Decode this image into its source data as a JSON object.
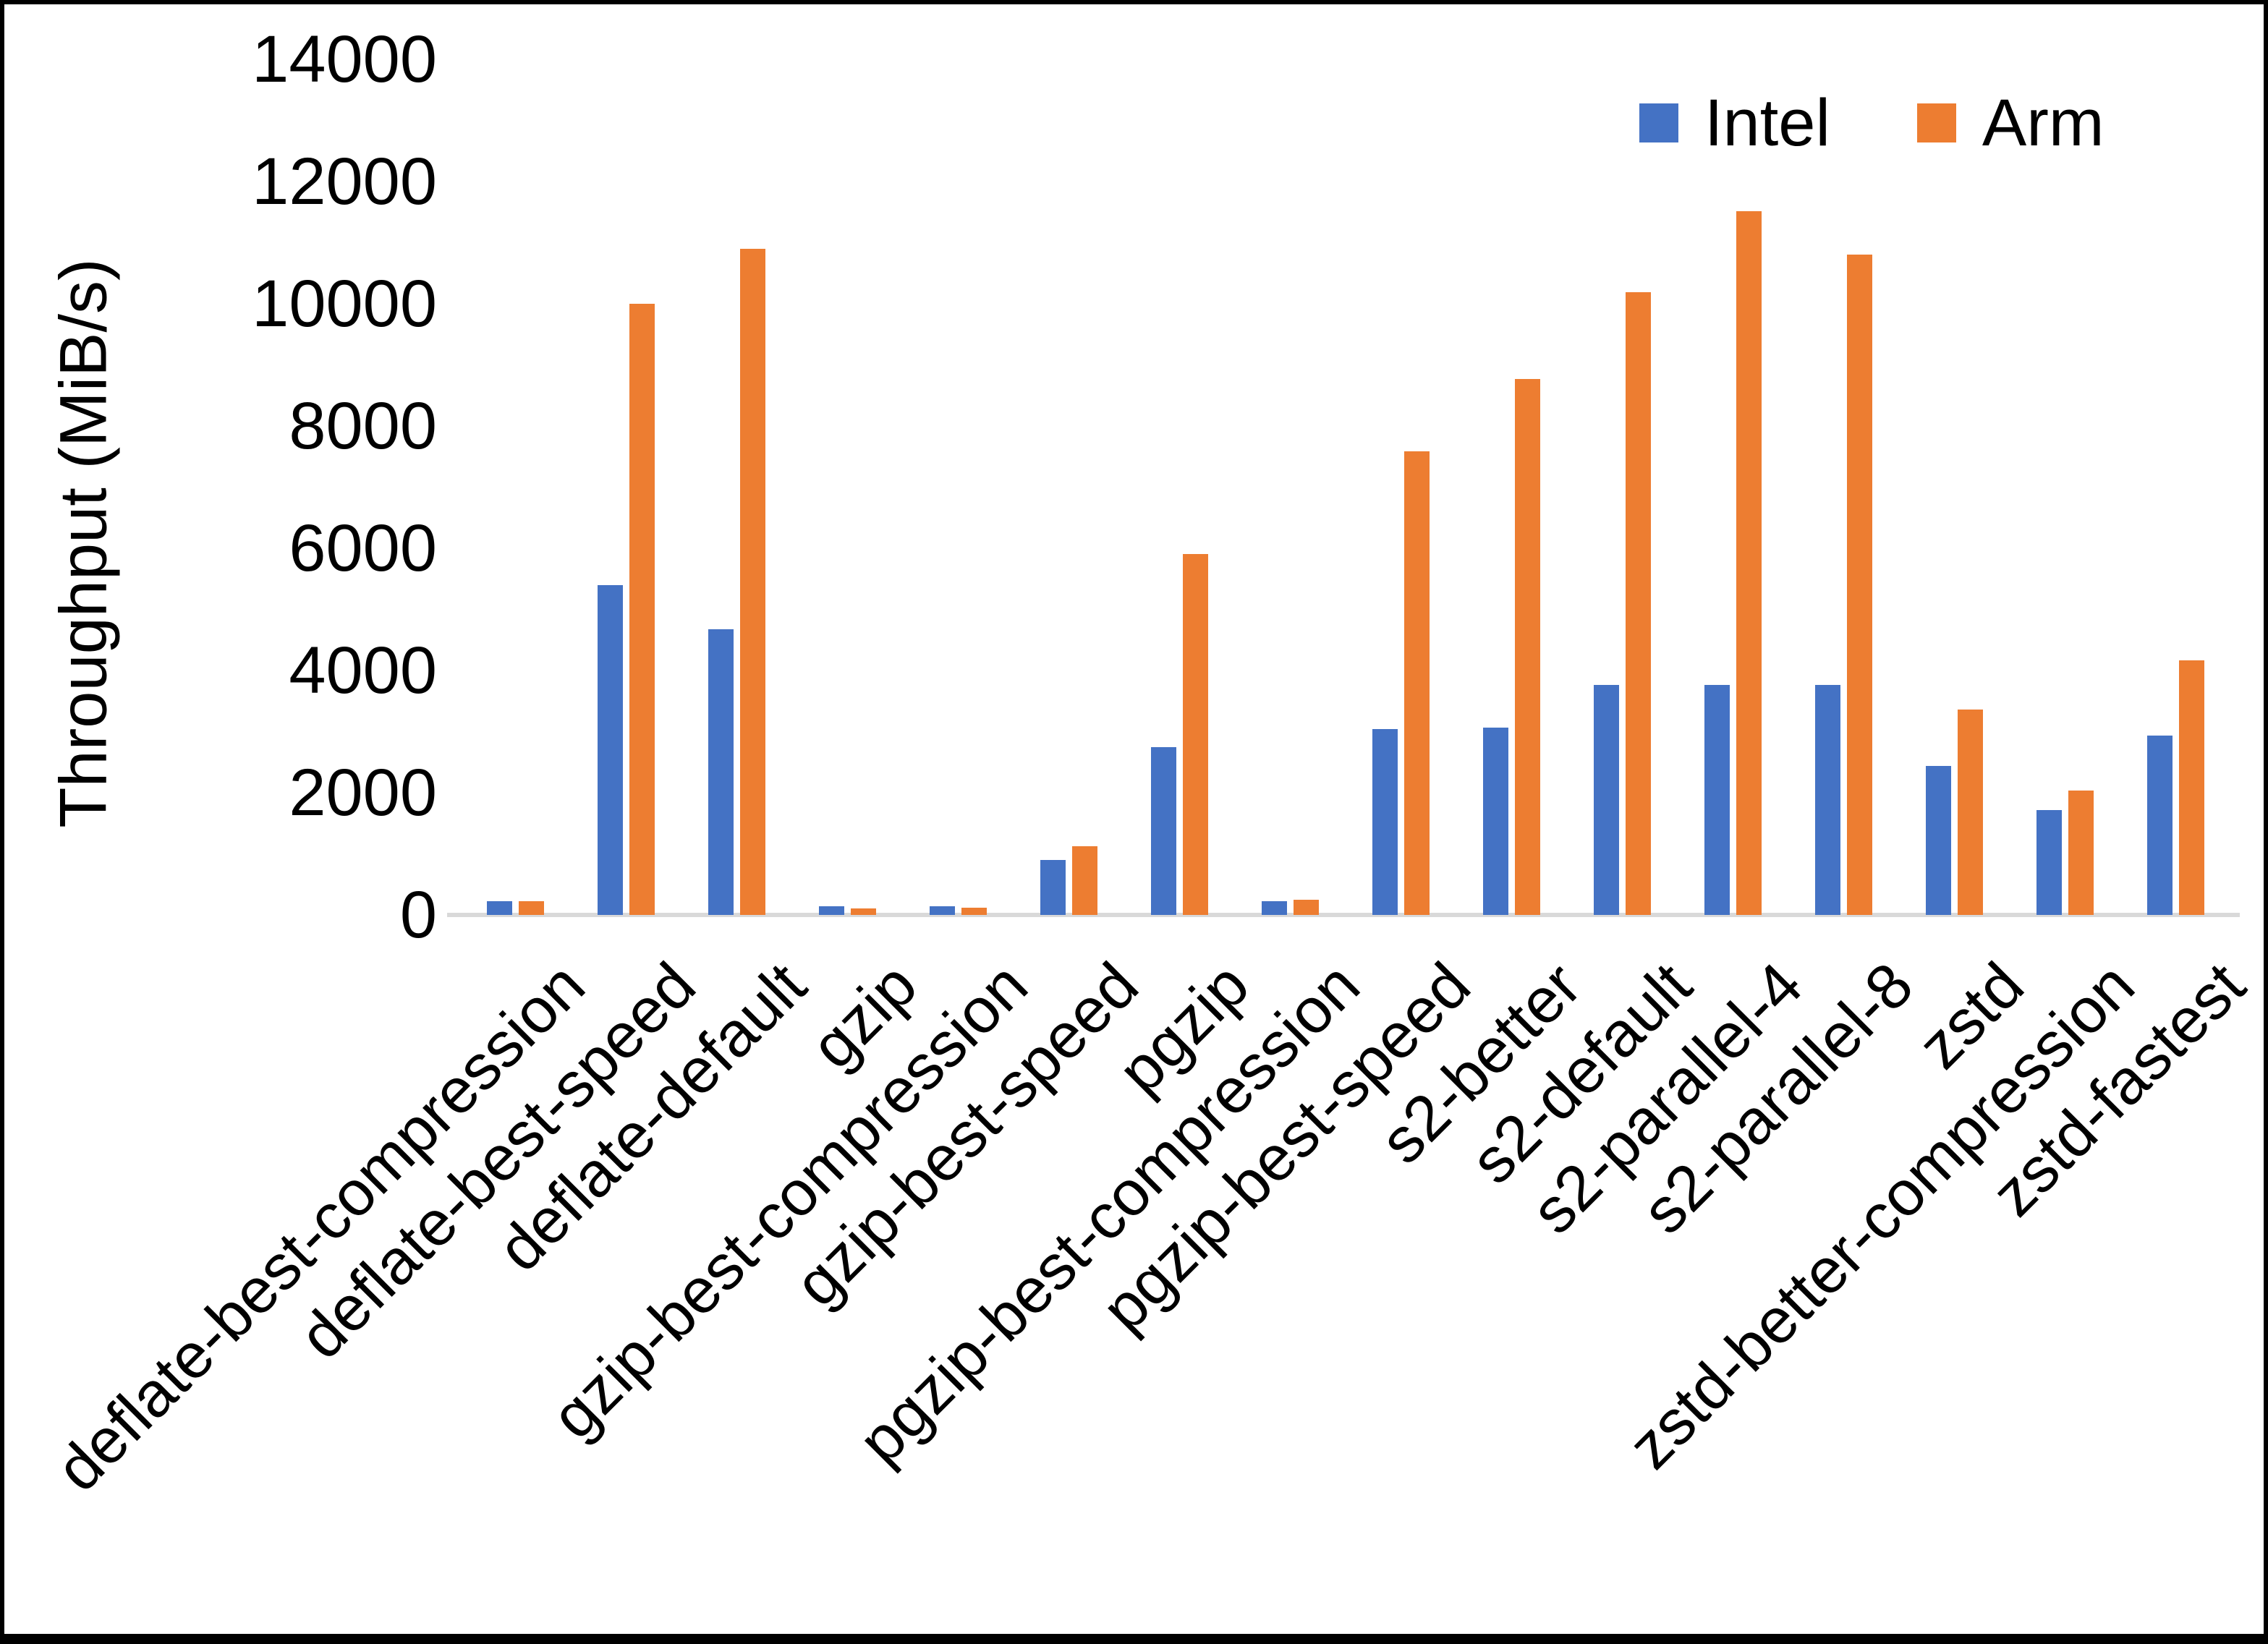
{
  "chart_data": {
    "type": "bar",
    "title": "",
    "ylabel": "Throughput (MiB/s)",
    "xlabel": "",
    "ylim": [
      0,
      14000
    ],
    "yticks": [
      0,
      2000,
      4000,
      6000,
      8000,
      10000,
      12000,
      14000
    ],
    "grid": false,
    "legend_position": "top-right",
    "categories": [
      "deflate-best-compression",
      "deflate-best-speed",
      "deflate-default",
      "gzip",
      "gzip-best-compression",
      "gzip-best-speed",
      "pgzip",
      "pgzip-best-compression",
      "pgzip-best-speed",
      "s2-better",
      "s2-default",
      "s2-parallel-4",
      "s2-parallel-8",
      "zstd",
      "zstd-better-compression",
      "zstd-fastest"
    ],
    "series": [
      {
        "name": "Intel",
        "color": "#4472C4",
        "values": [
          230,
          5400,
          4670,
          140,
          140,
          900,
          2740,
          230,
          3040,
          3060,
          3760,
          3760,
          3760,
          2440,
          1720,
          2940
        ]
      },
      {
        "name": "Arm",
        "color": "#ED7D31",
        "values": [
          230,
          10000,
          10900,
          110,
          120,
          1120,
          5900,
          245,
          7590,
          8770,
          10190,
          11510,
          10800,
          3360,
          2030,
          4170
        ]
      }
    ]
  },
  "legend": {
    "items": [
      {
        "label": "Intel",
        "color": "#4472C4"
      },
      {
        "label": "Arm",
        "color": "#ED7D31"
      }
    ]
  },
  "colors": {
    "background": "#FFFFFF",
    "frame": "#000000",
    "axis_line": "#D9D9D9",
    "text": "#000000",
    "intel": "#4472C4",
    "arm": "#ED7D31"
  }
}
